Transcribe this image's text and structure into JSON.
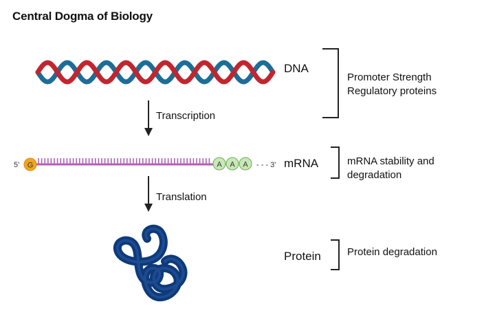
{
  "title": "Central Dogma of Biology",
  "stages": {
    "dna": {
      "label": "DNA",
      "regulation": [
        "Promoter Strength",
        "Regulatory proteins"
      ]
    },
    "mrna": {
      "label": "mRNA",
      "regulation": [
        "mRNA stability and",
        "degradation"
      ],
      "five_prime": "5'",
      "three_prime": "- - - 3'",
      "cap": "G",
      "poly_a": [
        "A",
        "A",
        "A"
      ]
    },
    "protein": {
      "label": "Protein",
      "regulation": [
        "Protein degradation"
      ]
    }
  },
  "processes": {
    "transcription": "Transcription",
    "translation": "Translation"
  },
  "colors": {
    "dna_red": "#c0262f",
    "dna_blue": "#1d6d97",
    "mrna_strand": "#b060b6",
    "cap_fill": "#f0a51f",
    "poly_a_fill": "#c9e8b8",
    "poly_a_stroke": "#6daa55",
    "protein": "#0e3a78",
    "protein_highlight": "#2a5aa8"
  },
  "icons": {
    "dna": "double-helix-icon",
    "protein": "folded-protein-icon"
  }
}
